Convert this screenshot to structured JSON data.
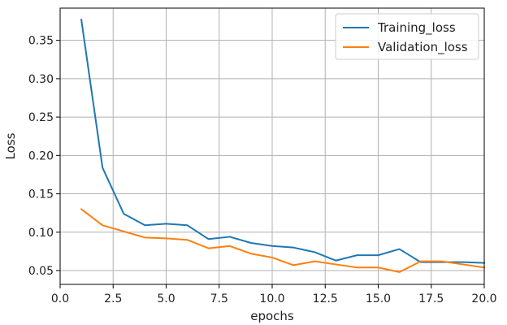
{
  "chart_data": {
    "type": "line",
    "title": "",
    "xlabel": "epochs",
    "ylabel": "Loss",
    "xlim": [
      0.0,
      20.0
    ],
    "ylim": [
      0.032,
      0.392
    ],
    "x_ticks": [
      "0.0",
      "2.5",
      "5.0",
      "7.5",
      "10.0",
      "12.5",
      "15.0",
      "17.5",
      "20.0"
    ],
    "y_ticks": [
      "0.05",
      "0.10",
      "0.15",
      "0.20",
      "0.25",
      "0.30",
      "0.35"
    ],
    "grid": true,
    "legend_position": "top-right",
    "x": [
      1,
      2,
      3,
      4,
      5,
      6,
      7,
      8,
      9,
      10,
      11,
      12,
      13,
      14,
      15,
      16,
      17,
      18,
      19,
      20
    ],
    "series": [
      {
        "name": "Training_loss",
        "color": "#1f77b4",
        "values": [
          0.377,
          0.184,
          0.124,
          0.109,
          0.111,
          0.109,
          0.091,
          0.094,
          0.086,
          0.082,
          0.08,
          0.074,
          0.063,
          0.07,
          0.07,
          0.078,
          0.061,
          0.061,
          0.061,
          0.06
        ]
      },
      {
        "name": "Validation_loss",
        "color": "#ff7f0e",
        "values": [
          0.13,
          0.109,
          0.101,
          0.093,
          0.092,
          0.09,
          0.079,
          0.082,
          0.072,
          0.067,
          0.057,
          0.062,
          0.058,
          0.054,
          0.054,
          0.048,
          0.062,
          0.062,
          0.058,
          0.054
        ]
      }
    ]
  }
}
